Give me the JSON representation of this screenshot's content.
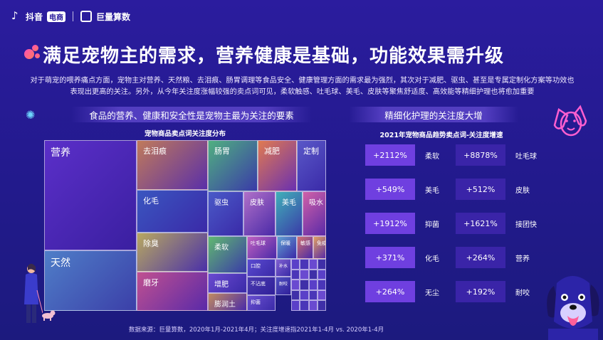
{
  "brand": {
    "douyin": "抖音",
    "ecom_badge": "电商",
    "juliang": "巨量算数"
  },
  "header": {
    "title": "满足宠物主的需求，营养健康是基础，功能效果需升级",
    "intro_line1": "对于萌宠的喂养痛点方面，宠物主对营养、天然粮、去泪痕、肠胃调理等食品安全、健康管理方面的需求最为强烈，其次对于减肥、驱虫、甚至是专属定制化方案等功效也",
    "intro_line2": "表现出更高的关注。另外，从今年关注度涨幅较强的卖点词可见，柔软触感、吐毛球、美毛、皮肤等聚焦舒适度、高效能等精细护理也将愈加重要"
  },
  "left_panel": {
    "heading": "食品的营养、健康和安全性是宠物主最为关注的要素",
    "chart_title": "宠物商品卖点词关注度分布"
  },
  "right_panel": {
    "heading": "精细化护理的关注度大增",
    "chart_title": "2021年宠物商品趋势卖点词-关注度增速",
    "rows": [
      {
        "left_value": "+2112%",
        "left_label": "柔软",
        "right_value": "+8878%",
        "right_label": "吐毛球"
      },
      {
        "left_value": "+549%",
        "left_label": "美毛",
        "right_value": "+512%",
        "right_label": "皮肤"
      },
      {
        "left_value": "+1912%",
        "left_label": "抑菌",
        "right_value": "+1621%",
        "right_label": "接团快"
      },
      {
        "left_value": "+371%",
        "left_label": "化毛",
        "right_value": "+264%",
        "right_label": "营养"
      },
      {
        "left_value": "+264%",
        "left_label": "无尘",
        "right_value": "+192%",
        "right_label": "耐咬"
      }
    ]
  },
  "footer": {
    "source": "数据来源：巨量算数，2020年1月-2021年4月；关注度增速指2021年1-4月 vs. 2020年1-4月"
  },
  "chart_data": [
    {
      "type": "treemap",
      "title": "宠物商品卖点词关注度分布",
      "categories": [
        "营养",
        "天然",
        "去泪痕",
        "化毛",
        "除臭",
        "磨牙",
        "肠胃",
        "减肥",
        "定制",
        "驱虫",
        "皮肤",
        "美毛",
        "吸水",
        "柔软",
        "增肥",
        "膨润土",
        "吐毛球",
        "保暖",
        "敏感",
        "免疫",
        "口腔",
        "补水",
        "不沾底",
        "耐咬",
        "抑菌"
      ],
      "values": [
        288,
        120,
        82,
        72,
        55,
        70,
        72,
        50,
        42,
        36,
        22,
        18,
        15,
        24,
        14,
        13,
        10,
        8,
        6,
        5,
        6,
        5,
        5,
        4,
        4
      ]
    },
    {
      "type": "table",
      "title": "2021年宠物商品趋势卖点词-关注度增速",
      "categories": [
        "柔软",
        "美毛",
        "抑菌",
        "化毛",
        "无尘",
        "吐毛球",
        "皮肤",
        "接团快",
        "营养",
        "耐咬"
      ],
      "values": [
        2112,
        549,
        1912,
        371,
        264,
        8878,
        512,
        1621,
        264,
        192
      ]
    }
  ]
}
